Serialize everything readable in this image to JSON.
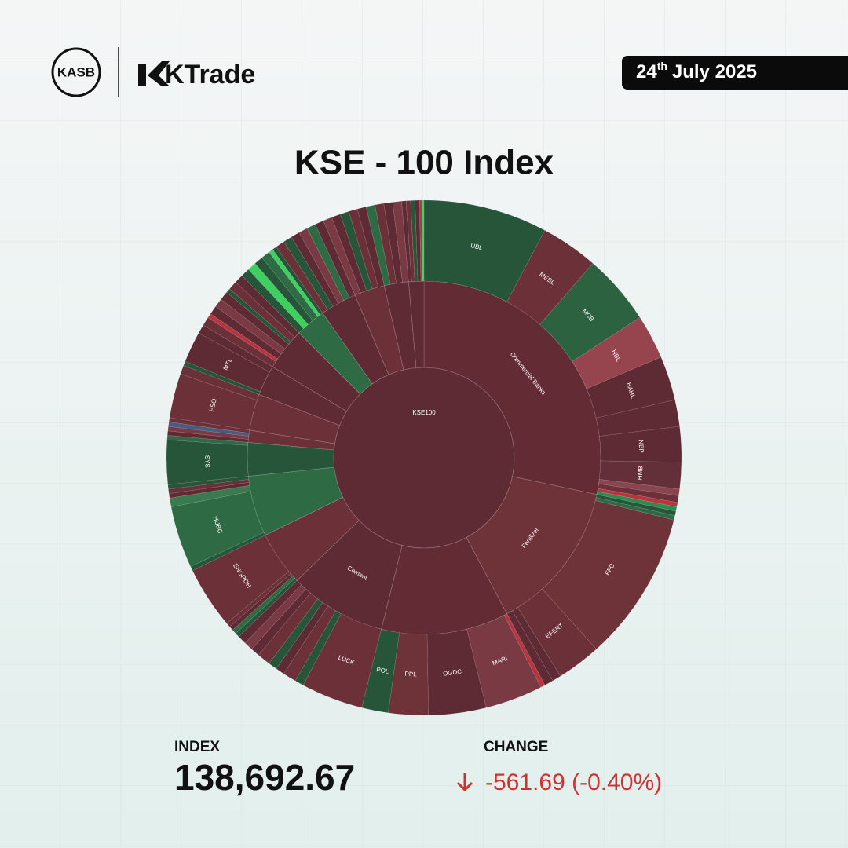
{
  "header": {
    "brand_left": "KASB",
    "brand_right": "KTrade",
    "date": {
      "day": "24",
      "suffix": "th",
      "rest": "July 2025"
    }
  },
  "chart_data": {
    "type": "sunburst",
    "title": "KSE - 100 Index",
    "root": {
      "name": "KSE100",
      "value": 360,
      "color": "#5e2a33"
    },
    "sectors": [
      {
        "name": "Commercial Banks",
        "value": 102,
        "color": "#632c35",
        "children": [
          {
            "name": "UBL",
            "value": 28,
            "color": "#27553a"
          },
          {
            "name": "MEBL",
            "value": 13,
            "color": "#6b3038"
          },
          {
            "name": "MCB",
            "value": 16,
            "color": "#2c6240"
          },
          {
            "name": "HBL",
            "value": 10,
            "color": "#96454f"
          },
          {
            "name": "BAHL",
            "value": 10,
            "color": "#5e2a33"
          },
          {
            "name": null,
            "value": 6,
            "color": "#5e2a33"
          },
          {
            "name": "NBP",
            "value": 8,
            "color": "#5e2a33"
          },
          {
            "name": "HMB",
            "value": 6,
            "color": "#63303a"
          },
          {
            "name": null,
            "value": 1.5,
            "color": "#8a4550"
          },
          {
            "name": null,
            "value": 1.5,
            "color": "#6b3038"
          },
          {
            "name": null,
            "value": 1,
            "color": "#b8343f"
          },
          {
            "name": null,
            "value": 1,
            "color": "#2e8b4e"
          }
        ]
      },
      {
        "name": "Fertilizer",
        "value": 50,
        "color": "#6e3239",
        "children": [
          {
            "name": null,
            "value": 1,
            "color": "#27553a"
          },
          {
            "name": null,
            "value": 1,
            "color": "#2e6b45"
          },
          {
            "name": "FFC",
            "value": 34,
            "color": "#6e3239"
          },
          {
            "name": "EFERT",
            "value": 10,
            "color": "#6b3038"
          },
          {
            "name": null,
            "value": 2,
            "color": "#5e2a33"
          },
          {
            "name": null,
            "value": 2,
            "color": "#5e2a33"
          }
        ]
      },
      {
        "name": null,
        "value": 42,
        "color": "#632c35",
        "children": [
          {
            "name": null,
            "value": 1,
            "color": "#b8343f"
          },
          {
            "name": "MARI",
            "value": 13,
            "color": "#7a3a44"
          },
          {
            "name": "OGDC",
            "value": 13,
            "color": "#5e2a33"
          },
          {
            "name": "PPL",
            "value": 9,
            "color": "#6e3239"
          },
          {
            "name": "POL",
            "value": 6,
            "color": "#27553a"
          }
        ]
      },
      {
        "name": "Cement",
        "value": 32,
        "color": "#5e2a33",
        "children": [
          {
            "name": "LUCK",
            "value": 14,
            "color": "#6b3038"
          },
          {
            "name": null,
            "value": 2,
            "color": "#27553a"
          },
          {
            "name": null,
            "value": 3,
            "color": "#6b3038"
          },
          {
            "name": null,
            "value": 2,
            "color": "#5e2a33"
          },
          {
            "name": null,
            "value": 2,
            "color": "#27553a"
          },
          {
            "name": null,
            "value": 3,
            "color": "#6b3038"
          },
          {
            "name": null,
            "value": 2,
            "color": "#5e2a33"
          },
          {
            "name": null,
            "value": 2,
            "color": "#7a3a44"
          },
          {
            "name": null,
            "value": 2,
            "color": "#5e2a33"
          }
        ]
      },
      {
        "name": null,
        "value": 18,
        "color": "#6b3038",
        "children": [
          {
            "name": null,
            "value": 1,
            "color": "#27553a"
          },
          {
            "name": null,
            "value": 1,
            "color": "#2e6b45"
          },
          {
            "name": null,
            "value": 1,
            "color": "#5e2a33"
          },
          {
            "name": null,
            "value": 1,
            "color": "#6b3038"
          },
          {
            "name": "ENGROH",
            "value": 14,
            "color": "#6b3038"
          }
        ]
      },
      {
        "name": null,
        "value": 20,
        "color": "#2e6b45",
        "children": [
          {
            "name": null,
            "value": 1,
            "color": "#27553a"
          },
          {
            "name": "HUBC",
            "value": 14,
            "color": "#2e6b45"
          },
          {
            "name": null,
            "value": 2,
            "color": "#3a7a50"
          },
          {
            "name": null,
            "value": 1,
            "color": "#5e2a33"
          },
          {
            "name": null,
            "value": 1,
            "color": "#6b3038"
          },
          {
            "name": null,
            "value": 1,
            "color": "#27553a"
          }
        ]
      },
      {
        "name": null,
        "value": 11,
        "color": "#27553a",
        "children": [
          {
            "name": "SYS",
            "value": 10,
            "color": "#27553a"
          },
          {
            "name": null,
            "value": 1,
            "color": "#2e6b45"
          }
        ]
      },
      {
        "name": null,
        "value": 4,
        "color": "#6b3038",
        "children": [
          {
            "name": null,
            "value": 1,
            "color": "#5e2a33"
          },
          {
            "name": null,
            "value": 1,
            "color": "#7a3a44"
          },
          {
            "name": null,
            "value": 1,
            "color": "#4a5b80"
          },
          {
            "name": null,
            "value": 1,
            "color": "#6b3038"
          }
        ]
      },
      {
        "name": null,
        "value": 12,
        "color": "#6b3038",
        "children": [
          {
            "name": "PSO",
            "value": 10,
            "color": "#6b3038"
          },
          {
            "name": null,
            "value": 2,
            "color": "#6b3038"
          }
        ]
      },
      {
        "name": null,
        "value": 10,
        "color": "#5e2a33",
        "children": [
          {
            "name": null,
            "value": 1,
            "color": "#27553a"
          },
          {
            "name": "MTL",
            "value": 7,
            "color": "#5e2a33"
          },
          {
            "name": null,
            "value": 2,
            "color": "#5e2a33"
          }
        ]
      },
      {
        "name": null,
        "value": 14,
        "color": "#5e2a33",
        "children": [
          {
            "name": null,
            "value": 2,
            "color": "#6b3038"
          },
          {
            "name": null,
            "value": 1,
            "color": "#b8343f"
          },
          {
            "name": null,
            "value": 2,
            "color": "#5e2a33"
          },
          {
            "name": null,
            "value": 2,
            "color": "#7a3a44"
          },
          {
            "name": null,
            "value": 2,
            "color": "#5e2a33"
          },
          {
            "name": null,
            "value": 1,
            "color": "#27553a"
          },
          {
            "name": null,
            "value": 2,
            "color": "#6b3038"
          },
          {
            "name": null,
            "value": 2,
            "color": "#5e2a33"
          }
        ]
      },
      {
        "name": null,
        "value": 10,
        "color": "#2e6b45",
        "children": [
          {
            "name": null,
            "value": 2,
            "color": "#27553a"
          },
          {
            "name": null,
            "value": 2,
            "color": "#3ecf5e"
          },
          {
            "name": null,
            "value": 2,
            "color": "#27553a"
          },
          {
            "name": null,
            "value": 2,
            "color": "#2e6b45"
          },
          {
            "name": null,
            "value": 1,
            "color": "#3ecf5e"
          },
          {
            "name": null,
            "value": 1,
            "color": "#27553a"
          }
        ]
      },
      {
        "name": null,
        "value": 12,
        "color": "#5e2a33",
        "children": [
          {
            "name": null,
            "value": 2,
            "color": "#6b3038"
          },
          {
            "name": null,
            "value": 2,
            "color": "#27553a"
          },
          {
            "name": null,
            "value": 2,
            "color": "#5e2a33"
          },
          {
            "name": null,
            "value": 2,
            "color": "#7a3a44"
          },
          {
            "name": null,
            "value": 2,
            "color": "#2e6b45"
          },
          {
            "name": null,
            "value": 2,
            "color": "#5e2a33"
          }
        ]
      },
      {
        "name": null,
        "value": 10,
        "color": "#6b3038",
        "children": [
          {
            "name": null,
            "value": 2,
            "color": "#7a3a44"
          },
          {
            "name": null,
            "value": 2,
            "color": "#5e2a33"
          },
          {
            "name": null,
            "value": 2,
            "color": "#27553a"
          },
          {
            "name": null,
            "value": 2,
            "color": "#6b3038"
          },
          {
            "name": null,
            "value": 2,
            "color": "#5e2a33"
          }
        ]
      },
      {
        "name": null,
        "value": 8,
        "color": "#5e2a33",
        "children": [
          {
            "name": null,
            "value": 2,
            "color": "#2e6b45"
          },
          {
            "name": null,
            "value": 2,
            "color": "#6b3038"
          },
          {
            "name": null,
            "value": 2,
            "color": "#5e2a33"
          },
          {
            "name": null,
            "value": 2,
            "color": "#7a3a44"
          }
        ]
      },
      {
        "name": null,
        "value": 5,
        "color": "#5e2a33",
        "children": [
          {
            "name": null,
            "value": 1,
            "color": "#5e2a33"
          },
          {
            "name": null,
            "value": 1,
            "color": "#6b3038"
          },
          {
            "name": null,
            "value": 1,
            "color": "#27553a"
          },
          {
            "name": null,
            "value": 1,
            "color": "#5e2a33"
          },
          {
            "name": null,
            "value": 0.5,
            "color": "#b8343f"
          },
          {
            "name": null,
            "value": 0.5,
            "color": "#3ecf5e"
          }
        ]
      }
    ]
  },
  "footer": {
    "index_label": "INDEX",
    "index_value": "138,692.67",
    "change_label": "CHANGE",
    "change_value": "-561.69 (-0.40%)"
  }
}
